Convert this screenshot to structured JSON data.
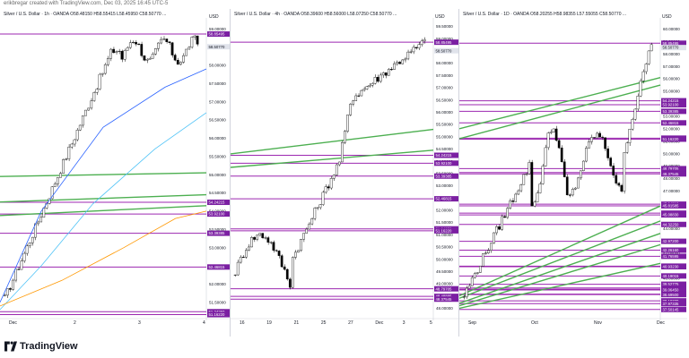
{
  "caption": "erikbregar created with TradingView.com, Dec 03, 2025 16:45 UTC-5",
  "footer": {
    "brand": "TradingView"
  },
  "colors": {
    "purple": "#9c27b0",
    "purple_label": "#7b1fa2",
    "green": "#4caf50",
    "up": "#ffffff",
    "down": "#000000",
    "ma_blue": "#2962ff",
    "ma_cyan": "#4fc3f7",
    "ma_orange": "#ff9800",
    "price_label": "#e0e3eb",
    "grid": "#f0f3fa"
  },
  "panels": [
    {
      "title": "Silver / U.S. Dollar · 1h · OANDA  O58.48150  H58.55415  L58.45950  C58.50770 ...",
      "currency": "USD",
      "price_range": [
        51.2,
        59.2
      ],
      "axis_ticks": [
        "59.00000",
        "58.50000",
        "58.00000",
        "57.50000",
        "57.00000",
        "56.50000",
        "56.00000",
        "55.50000",
        "55.00000",
        "54.50000",
        "54.00000",
        "53.50000",
        "53.00000",
        "52.50000",
        "52.00000",
        "51.50000"
      ],
      "time_labels": [
        "Dec",
        "2",
        "3",
        "4"
      ],
      "current_price": "58.50770",
      "levels": [
        "58.85495",
        "54.24215",
        "53.92100",
        "53.39385",
        "52.46815",
        "51.24250",
        "51.16220"
      ],
      "trend_lines": [
        {
          "from": [
            0.0,
            54.95
          ],
          "to": [
            1.0,
            55.05
          ]
        },
        {
          "from": [
            0.0,
            54.25
          ],
          "to": [
            1.0,
            54.45
          ]
        },
        {
          "from": [
            0.0,
            53.88
          ],
          "to": [
            1.0,
            54.15
          ]
        }
      ],
      "moving_averages": [
        "blue",
        "cyan",
        "orange"
      ]
    },
    {
      "title": "Silver / U.S. Dollar · 4h · OANDA  O58.39600  H58.56000  L58.07250  C58.50770 ...",
      "currency": "USD",
      "price_range": [
        47.8,
        59.7
      ],
      "axis_ticks": [
        "59.50000",
        "59.00000",
        "58.50000",
        "58.00000",
        "57.50000",
        "57.00000",
        "56.50000",
        "56.00000",
        "55.50000",
        "55.00000",
        "54.50000",
        "54.00000",
        "53.50000",
        "53.00000",
        "52.50000",
        "52.00000",
        "51.50000",
        "51.00000",
        "50.50000",
        "50.00000",
        "49.50000",
        "49.00000",
        "48.50000",
        "48.00000"
      ],
      "time_labels": [
        "16",
        "19",
        "21",
        "25",
        "27",
        "Dec",
        "3",
        "5"
      ],
      "current_price": "58.50770",
      "levels": [
        "58.85495",
        "54.24215",
        "53.92100",
        "53.39385",
        "52.46815",
        "51.24250",
        "51.16220",
        "48.79705",
        "48.48885",
        "48.37545"
      ],
      "trend_lines": [
        {
          "from": [
            0.0,
            54.3
          ],
          "to": [
            1.0,
            55.3
          ]
        },
        {
          "from": [
            0.0,
            53.75
          ],
          "to": [
            1.0,
            54.45
          ]
        }
      ]
    },
    {
      "title": "Silver / U.S. Dollar · 1D · OANDA  O58.20255  H58.98355  L57.55055  C58.50770 ...",
      "currency": "USD",
      "price_range": [
        37.2,
        60.6
      ],
      "axis_ticks": [
        "60.00000",
        "59.00000",
        "58.00000",
        "57.00000",
        "56.00000",
        "55.00000",
        "54.00000",
        "53.00000",
        "52.00000",
        "51.00000",
        "50.00000",
        "49.00000",
        "48.00000",
        "47.00000",
        "46.00000",
        "45.00000",
        "44.00000",
        "43.00000",
        "42.00000",
        "41.00000",
        "40.00000",
        "39.00000",
        "38.00000"
      ],
      "time_labels": [
        "Sep",
        "Oct",
        "Nov",
        "Dec"
      ],
      "current_price": "58.50770",
      "levels": [
        "58.85495",
        "54.24215",
        "53.92100",
        "53.39385",
        "52.46815",
        "51.24250",
        "51.16220",
        "48.79705",
        "48.48885",
        "48.37545",
        "45.94810",
        "45.81585",
        "45.22585",
        "45.08830",
        "44.32250",
        "42.97200",
        "42.26160",
        "41.76595",
        "40.97785",
        "40.93230",
        "40.19015",
        "39.52775",
        "39.22870",
        "39.13280",
        "39.06450",
        "38.73800",
        "38.69500",
        "38.19330",
        "37.97335",
        "37.50145"
      ],
      "trend_lines": [
        {
          "from": [
            0.0,
            52.0
          ],
          "to": [
            1.0,
            56.1
          ]
        },
        {
          "from": [
            0.0,
            51.2
          ],
          "to": [
            1.0,
            55.5
          ]
        },
        {
          "from": [
            0.0,
            38.6
          ],
          "to": [
            1.0,
            45.8
          ]
        },
        {
          "from": [
            0.0,
            38.4
          ],
          "to": [
            1.0,
            44.6
          ]
        },
        {
          "from": [
            0.0,
            38.0
          ],
          "to": [
            1.0,
            43.6
          ]
        },
        {
          "from": [
            0.0,
            37.8
          ],
          "to": [
            1.0,
            42.7
          ]
        },
        {
          "from": [
            0.0,
            37.6
          ],
          "to": [
            1.0,
            41.2
          ]
        }
      ]
    }
  ]
}
